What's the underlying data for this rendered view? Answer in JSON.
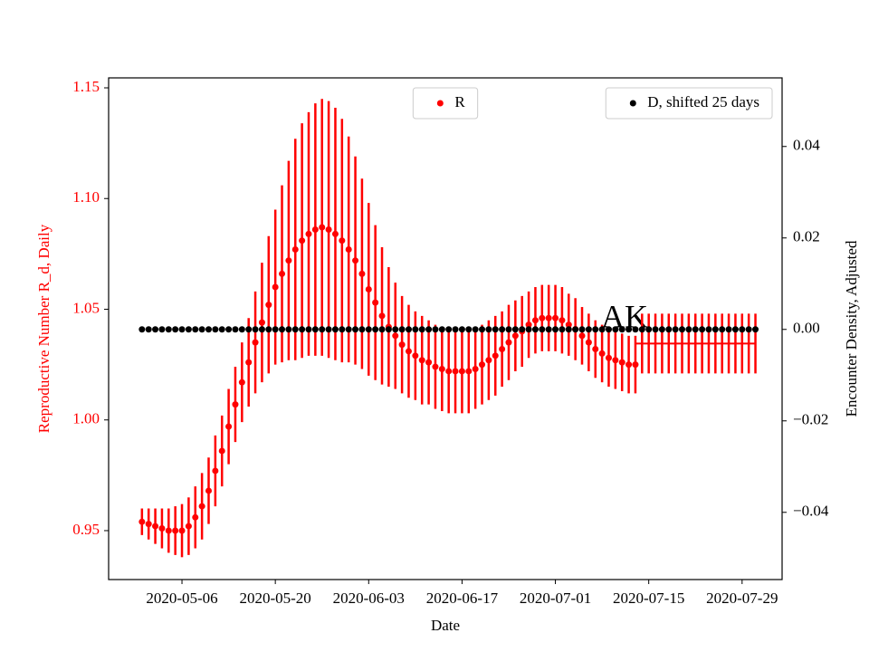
{
  "chart_data": {
    "type": "errorbar_dual",
    "xlabel": "Date",
    "ylabel": "Reproductive Number R_d, Daily",
    "y2label": "Encounter Density, Adjusted",
    "annotation": "AK",
    "x": [
      "2020-04-30",
      "2020-05-01",
      "2020-05-02",
      "2020-05-03",
      "2020-05-04",
      "2020-05-05",
      "2020-05-06",
      "2020-05-07",
      "2020-05-08",
      "2020-05-09",
      "2020-05-10",
      "2020-05-11",
      "2020-05-12",
      "2020-05-13",
      "2020-05-14",
      "2020-05-15",
      "2020-05-16",
      "2020-05-17",
      "2020-05-18",
      "2020-05-19",
      "2020-05-20",
      "2020-05-21",
      "2020-05-22",
      "2020-05-23",
      "2020-05-24",
      "2020-05-25",
      "2020-05-26",
      "2020-05-27",
      "2020-05-28",
      "2020-05-29",
      "2020-05-30",
      "2020-05-31",
      "2020-06-01",
      "2020-06-02",
      "2020-06-03",
      "2020-06-04",
      "2020-06-05",
      "2020-06-06",
      "2020-06-07",
      "2020-06-08",
      "2020-06-09",
      "2020-06-10",
      "2020-06-11",
      "2020-06-12",
      "2020-06-13",
      "2020-06-14",
      "2020-06-15",
      "2020-06-16",
      "2020-06-17",
      "2020-06-18",
      "2020-06-19",
      "2020-06-20",
      "2020-06-21",
      "2020-06-22",
      "2020-06-23",
      "2020-06-24",
      "2020-06-25",
      "2020-06-26",
      "2020-06-27",
      "2020-06-28",
      "2020-06-29",
      "2020-06-30",
      "2020-07-01",
      "2020-07-02",
      "2020-07-03",
      "2020-07-04",
      "2020-07-05",
      "2020-07-06",
      "2020-07-07",
      "2020-07-08",
      "2020-07-09",
      "2020-07-10",
      "2020-07-11",
      "2020-07-12",
      "2020-07-13",
      "2020-07-14",
      "2020-07-15",
      "2020-07-16",
      "2020-07-17",
      "2020-07-18",
      "2020-07-19",
      "2020-07-20",
      "2020-07-21",
      "2020-07-22",
      "2020-07-23",
      "2020-07-24",
      "2020-07-25",
      "2020-07-26",
      "2020-07-27",
      "2020-07-28",
      "2020-07-29",
      "2020-07-30",
      "2020-07-31"
    ],
    "series": [
      {
        "name": "R",
        "color": "#ff0000",
        "axis": "y",
        "legend": "upper center",
        "values": [
          0.954,
          0.953,
          0.952,
          0.951,
          0.95,
          0.95,
          0.95,
          0.952,
          0.956,
          0.961,
          0.968,
          0.977,
          0.986,
          0.997,
          1.007,
          1.017,
          1.026,
          1.035,
          1.044,
          1.052,
          1.06,
          1.066,
          1.072,
          1.077,
          1.081,
          1.084,
          1.086,
          1.087,
          1.086,
          1.084,
          1.081,
          1.077,
          1.072,
          1.066,
          1.059,
          1.053,
          1.047,
          1.042,
          1.038,
          1.034,
          1.031,
          1.029,
          1.027,
          1.026,
          1.024,
          1.023,
          1.022,
          1.022,
          1.022,
          1.022,
          1.023,
          1.025,
          1.027,
          1.029,
          1.032,
          1.035,
          1.038,
          1.04,
          1.043,
          1.045,
          1.046,
          1.046,
          1.046,
          1.045,
          1.043,
          1.041,
          1.038,
          1.035,
          1.032,
          1.03,
          1.028,
          1.027,
          1.026,
          1.025,
          1.025,
          null,
          null,
          null,
          null,
          null,
          null,
          null,
          null,
          null,
          null,
          null,
          null,
          null,
          null,
          null,
          null,
          null,
          null
        ],
        "errors": [
          0.006,
          0.007,
          0.008,
          0.009,
          0.01,
          0.011,
          0.012,
          0.013,
          0.014,
          0.015,
          0.015,
          0.016,
          0.016,
          0.017,
          0.017,
          0.018,
          0.02,
          0.023,
          0.027,
          0.031,
          0.035,
          0.04,
          0.045,
          0.05,
          0.053,
          0.055,
          0.057,
          0.058,
          0.058,
          0.057,
          0.055,
          0.051,
          0.047,
          0.043,
          0.039,
          0.035,
          0.031,
          0.027,
          0.024,
          0.022,
          0.021,
          0.02,
          0.02,
          0.019,
          0.019,
          0.019,
          0.019,
          0.019,
          0.019,
          0.019,
          0.018,
          0.018,
          0.018,
          0.018,
          0.017,
          0.017,
          0.016,
          0.016,
          0.015,
          0.015,
          0.015,
          0.015,
          0.015,
          0.015,
          0.014,
          0.014,
          0.013,
          0.013,
          0.013,
          0.013,
          0.013,
          0.013,
          0.013,
          0.013,
          0.013,
          null,
          null,
          null,
          null,
          null,
          null,
          null,
          null,
          null,
          null,
          null,
          null,
          null,
          null,
          null,
          null,
          null,
          null
        ]
      },
      {
        "name": "D, shifted 25 days",
        "color": "#000000",
        "axis": "y2",
        "legend": "upper right",
        "values": [
          0,
          0,
          0,
          0,
          0,
          0,
          0,
          0,
          0,
          0,
          0,
          0,
          0,
          0,
          0,
          0,
          0,
          0,
          0,
          0,
          0,
          0,
          0,
          0,
          0,
          0,
          0,
          0,
          0,
          0,
          0,
          0,
          0,
          0,
          0,
          0,
          0,
          0,
          0,
          0,
          0,
          0,
          0,
          0,
          0,
          0,
          0,
          0,
          0,
          0,
          0,
          0,
          0,
          0,
          0,
          0,
          0,
          0,
          0,
          0,
          0,
          0,
          0,
          0,
          0,
          0,
          0,
          0,
          0,
          0,
          0,
          0,
          0,
          0,
          0,
          0,
          0,
          0,
          0,
          0,
          0,
          0,
          0,
          0,
          0,
          0,
          0,
          0,
          0,
          0,
          0,
          0,
          0
        ]
      }
    ],
    "r_projection": {
      "color": "#ff0000",
      "values": [
        null,
        null,
        null,
        null,
        null,
        null,
        null,
        null,
        null,
        null,
        null,
        null,
        null,
        null,
        null,
        null,
        null,
        null,
        null,
        null,
        null,
        null,
        null,
        null,
        null,
        null,
        null,
        null,
        null,
        null,
        null,
        null,
        null,
        null,
        null,
        null,
        null,
        null,
        null,
        null,
        null,
        null,
        null,
        null,
        null,
        null,
        null,
        null,
        null,
        null,
        null,
        null,
        null,
        null,
        null,
        null,
        null,
        null,
        null,
        null,
        null,
        null,
        null,
        null,
        null,
        null,
        null,
        null,
        null,
        null,
        null,
        null,
        null,
        null,
        1.0345,
        1.0345,
        1.0345,
        1.0345,
        1.0345,
        1.0345,
        1.0345,
        1.0345,
        1.0345,
        1.0345,
        1.0345,
        1.0345,
        1.0345,
        1.0345,
        1.0345,
        1.0345,
        1.0345,
        1.0345,
        1.0345
      ],
      "errors": [
        null,
        null,
        null,
        null,
        null,
        null,
        null,
        null,
        null,
        null,
        null,
        null,
        null,
        null,
        null,
        null,
        null,
        null,
        null,
        null,
        null,
        null,
        null,
        null,
        null,
        null,
        null,
        null,
        null,
        null,
        null,
        null,
        null,
        null,
        null,
        null,
        null,
        null,
        null,
        null,
        null,
        null,
        null,
        null,
        null,
        null,
        null,
        null,
        null,
        null,
        null,
        null,
        null,
        null,
        null,
        null,
        null,
        null,
        null,
        null,
        null,
        null,
        null,
        null,
        null,
        null,
        null,
        null,
        null,
        null,
        null,
        null,
        null,
        null,
        null,
        0.0135,
        0.0135,
        0.0135,
        0.0135,
        0.0135,
        0.0135,
        0.0135,
        0.0135,
        0.0135,
        0.0135,
        0.0135,
        0.0135,
        0.0135,
        0.0135,
        0.0135,
        0.0135,
        0.0135,
        0.0135
      ]
    },
    "xlim": [
      "2020-04-25",
      "2020-08-04"
    ],
    "xticks": [
      "2020-05-06",
      "2020-05-20",
      "2020-06-03",
      "2020-06-17",
      "2020-07-01",
      "2020-07-15",
      "2020-07-29"
    ],
    "ylim": [
      0.9279,
      1.1545
    ],
    "yticks": [
      0.95,
      {
        "value": 1.0,
        "label": "1.00"
      },
      1.05,
      {
        "value": 1.1,
        "label": "1.10"
      },
      1.15
    ],
    "y2lim": [
      -0.0547,
      0.055
    ],
    "y2ticks": [
      {
        "value": -0.04,
        "label": "−0.04"
      },
      {
        "value": -0.02,
        "label": "−0.02"
      },
      {
        "value": 0,
        "label": "0.00"
      },
      0.02,
      0.04
    ],
    "ylabel_color": "#ff0000"
  }
}
